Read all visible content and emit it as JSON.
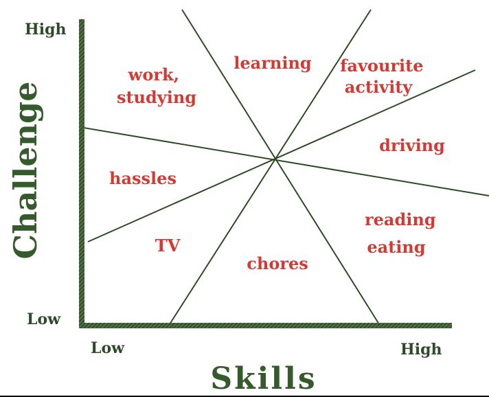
{
  "colors": {
    "axis": "#3d5c33",
    "divider": "#2e4a25",
    "region_text": "#d23a33",
    "tick_text": "#2f4a2a",
    "title_text": "#355a2c"
  },
  "axes": {
    "y_title": "Challenge",
    "x_title": "Skills",
    "y_high": "High",
    "y_low": "Low",
    "x_low": "Low",
    "x_high": "High"
  },
  "regions": {
    "work_studying": [
      "work,",
      "studying"
    ],
    "learning": [
      "learning"
    ],
    "favourite_activity": [
      "favourite",
      "activity"
    ],
    "driving": [
      "driving"
    ],
    "hassles": [
      "hassles"
    ],
    "reading_eating": [
      "reading",
      "eating"
    ],
    "tv": [
      "TV"
    ],
    "chores": [
      "chores"
    ]
  }
}
